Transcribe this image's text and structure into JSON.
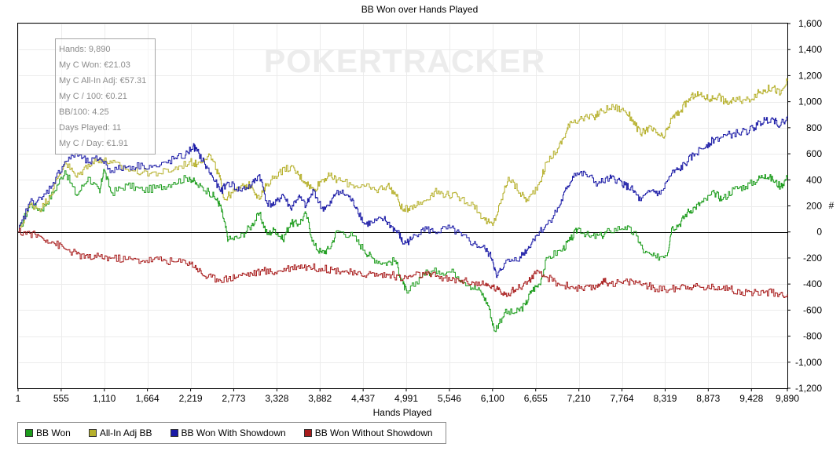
{
  "chart_data": {
    "type": "line",
    "title": "BB Won over Hands Played",
    "xlabel": "Hands Played",
    "ylabel": "#",
    "watermark": "POKERTRACKER",
    "xlim": [
      1,
      9890
    ],
    "ylim": [
      -1200,
      1600
    ],
    "x_ticks": [
      "1",
      "555",
      "1,110",
      "1,664",
      "2,219",
      "2,773",
      "3,328",
      "3,882",
      "4,437",
      "4,991",
      "5,546",
      "6,100",
      "6,655",
      "7,210",
      "7,764",
      "8,319",
      "8,873",
      "9,428",
      "9,890"
    ],
    "y_ticks": [
      "1,600",
      "1,400",
      "1,200",
      "1,000",
      "800",
      "600",
      "400",
      "200",
      "0",
      "-200",
      "-400",
      "-600",
      "-800",
      "-1,000",
      "-1,200"
    ],
    "grid": true,
    "legend_position": "bottom-left",
    "series": [
      {
        "name": "BB Won",
        "color": "#1c9c1c",
        "points": [
          [
            1,
            0
          ],
          [
            150,
            210
          ],
          [
            300,
            170
          ],
          [
            450,
            300
          ],
          [
            600,
            470
          ],
          [
            750,
            280
          ],
          [
            900,
            420
          ],
          [
            1050,
            300
          ],
          [
            1100,
            480
          ],
          [
            1200,
            300
          ],
          [
            1400,
            360
          ],
          [
            1600,
            320
          ],
          [
            1800,
            340
          ],
          [
            2000,
            380
          ],
          [
            2200,
            420
          ],
          [
            2300,
            360
          ],
          [
            2450,
            310
          ],
          [
            2550,
            250
          ],
          [
            2600,
            200
          ],
          [
            2650,
            80
          ],
          [
            2700,
            -60
          ],
          [
            2850,
            -40
          ],
          [
            3000,
            50
          ],
          [
            3100,
            140
          ],
          [
            3200,
            -20
          ],
          [
            3300,
            20
          ],
          [
            3400,
            -60
          ],
          [
            3500,
            70
          ],
          [
            3600,
            60
          ],
          [
            3700,
            140
          ],
          [
            3800,
            -100
          ],
          [
            3900,
            -160
          ],
          [
            4000,
            -130
          ],
          [
            4100,
            10
          ],
          [
            4300,
            -30
          ],
          [
            4450,
            -140
          ],
          [
            4550,
            -200
          ],
          [
            4700,
            -240
          ],
          [
            4850,
            -220
          ],
          [
            4950,
            -400
          ],
          [
            5000,
            -470
          ],
          [
            5200,
            -320
          ],
          [
            5400,
            -300
          ],
          [
            5600,
            -310
          ],
          [
            5800,
            -410
          ],
          [
            5950,
            -460
          ],
          [
            6050,
            -570
          ],
          [
            6120,
            -760
          ],
          [
            6250,
            -620
          ],
          [
            6400,
            -620
          ],
          [
            6520,
            -560
          ],
          [
            6600,
            -450
          ],
          [
            6700,
            -400
          ],
          [
            6800,
            -200
          ],
          [
            7000,
            -130
          ],
          [
            7100,
            -60
          ],
          [
            7200,
            30
          ],
          [
            7350,
            -40
          ],
          [
            7500,
            -30
          ],
          [
            7600,
            10
          ],
          [
            7800,
            40
          ],
          [
            7950,
            -30
          ],
          [
            8050,
            -160
          ],
          [
            8200,
            -200
          ],
          [
            8350,
            -160
          ],
          [
            8400,
            30
          ],
          [
            8500,
            60
          ],
          [
            8600,
            150
          ],
          [
            8700,
            190
          ],
          [
            8800,
            230
          ],
          [
            8950,
            300
          ],
          [
            9050,
            250
          ],
          [
            9200,
            330
          ],
          [
            9350,
            350
          ],
          [
            9500,
            400
          ],
          [
            9600,
            440
          ],
          [
            9700,
            400
          ],
          [
            9800,
            350
          ],
          [
            9890,
            420
          ]
        ]
      },
      {
        "name": "All-In Adj BB",
        "color": "#b6b02c",
        "points": [
          [
            1,
            0
          ],
          [
            150,
            210
          ],
          [
            300,
            180
          ],
          [
            450,
            330
          ],
          [
            600,
            540
          ],
          [
            750,
            420
          ],
          [
            900,
            520
          ],
          [
            1050,
            560
          ],
          [
            1200,
            530
          ],
          [
            1400,
            480
          ],
          [
            1600,
            460
          ],
          [
            1800,
            450
          ],
          [
            2000,
            480
          ],
          [
            2200,
            540
          ],
          [
            2300,
            520
          ],
          [
            2450,
            600
          ],
          [
            2550,
            480
          ],
          [
            2600,
            400
          ],
          [
            2650,
            250
          ],
          [
            2750,
            300
          ],
          [
            2900,
            350
          ],
          [
            3000,
            360
          ],
          [
            3100,
            250
          ],
          [
            3200,
            370
          ],
          [
            3350,
            460
          ],
          [
            3500,
            500
          ],
          [
            3600,
            440
          ],
          [
            3700,
            380
          ],
          [
            3800,
            320
          ],
          [
            3900,
            400
          ],
          [
            4000,
            430
          ],
          [
            4100,
            400
          ],
          [
            4300,
            360
          ],
          [
            4450,
            350
          ],
          [
            4600,
            320
          ],
          [
            4750,
            360
          ],
          [
            4850,
            290
          ],
          [
            4950,
            160
          ],
          [
            5050,
            200
          ],
          [
            5200,
            230
          ],
          [
            5350,
            310
          ],
          [
            5500,
            290
          ],
          [
            5650,
            270
          ],
          [
            5850,
            210
          ],
          [
            6000,
            90
          ],
          [
            6100,
            50
          ],
          [
            6200,
            220
          ],
          [
            6300,
            420
          ],
          [
            6450,
            300
          ],
          [
            6550,
            240
          ],
          [
            6700,
            380
          ],
          [
            6800,
            540
          ],
          [
            6950,
            650
          ],
          [
            7050,
            770
          ],
          [
            7100,
            850
          ],
          [
            7250,
            870
          ],
          [
            7400,
            880
          ],
          [
            7500,
            930
          ],
          [
            7650,
            960
          ],
          [
            7800,
            930
          ],
          [
            7900,
            860
          ],
          [
            8000,
            750
          ],
          [
            8100,
            800
          ],
          [
            8200,
            760
          ],
          [
            8300,
            720
          ],
          [
            8400,
            870
          ],
          [
            8500,
            920
          ],
          [
            8600,
            1000
          ],
          [
            8700,
            1060
          ],
          [
            8800,
            1040
          ],
          [
            8900,
            1020
          ],
          [
            9000,
            1050
          ],
          [
            9100,
            990
          ],
          [
            9200,
            1010
          ],
          [
            9350,
            1010
          ],
          [
            9500,
            1060
          ],
          [
            9600,
            1090
          ],
          [
            9700,
            1110
          ],
          [
            9800,
            1060
          ],
          [
            9890,
            1160
          ]
        ]
      },
      {
        "name": "BB Won With Showdown",
        "color": "#1a1aa6",
        "points": [
          [
            1,
            0
          ],
          [
            150,
            230
          ],
          [
            300,
            250
          ],
          [
            450,
            380
          ],
          [
            600,
            540
          ],
          [
            750,
            600
          ],
          [
            900,
            530
          ],
          [
            1050,
            570
          ],
          [
            1200,
            470
          ],
          [
            1400,
            500
          ],
          [
            1600,
            510
          ],
          [
            1800,
            500
          ],
          [
            2000,
            560
          ],
          [
            2150,
            590
          ],
          [
            2250,
            660
          ],
          [
            2300,
            620
          ],
          [
            2400,
            520
          ],
          [
            2500,
            420
          ],
          [
            2600,
            310
          ],
          [
            2700,
            380
          ],
          [
            2850,
            320
          ],
          [
            3000,
            360
          ],
          [
            3100,
            440
          ],
          [
            3200,
            220
          ],
          [
            3300,
            210
          ],
          [
            3400,
            290
          ],
          [
            3500,
            180
          ],
          [
            3600,
            270
          ],
          [
            3700,
            200
          ],
          [
            3800,
            320
          ],
          [
            3900,
            180
          ],
          [
            4000,
            200
          ],
          [
            4100,
            320
          ],
          [
            4250,
            270
          ],
          [
            4350,
            190
          ],
          [
            4450,
            60
          ],
          [
            4550,
            70
          ],
          [
            4700,
            100
          ],
          [
            4800,
            40
          ],
          [
            4900,
            -20
          ],
          [
            4950,
            -90
          ],
          [
            5050,
            -60
          ],
          [
            5200,
            30
          ],
          [
            5350,
            0
          ],
          [
            5550,
            30
          ],
          [
            5700,
            -30
          ],
          [
            5850,
            -90
          ],
          [
            6000,
            -130
          ],
          [
            6100,
            -210
          ],
          [
            6150,
            -350
          ],
          [
            6250,
            -240
          ],
          [
            6450,
            -190
          ],
          [
            6550,
            -130
          ],
          [
            6650,
            -30
          ],
          [
            6800,
            60
          ],
          [
            6950,
            190
          ],
          [
            7050,
            330
          ],
          [
            7150,
            450
          ],
          [
            7300,
            440
          ],
          [
            7450,
            370
          ],
          [
            7600,
            410
          ],
          [
            7700,
            400
          ],
          [
            7800,
            360
          ],
          [
            7900,
            320
          ],
          [
            8000,
            240
          ],
          [
            8150,
            320
          ],
          [
            8250,
            290
          ],
          [
            8400,
            450
          ],
          [
            8500,
            480
          ],
          [
            8600,
            540
          ],
          [
            8700,
            600
          ],
          [
            8850,
            670
          ],
          [
            8950,
            710
          ],
          [
            9100,
            740
          ],
          [
            9250,
            760
          ],
          [
            9400,
            780
          ],
          [
            9500,
            820
          ],
          [
            9600,
            860
          ],
          [
            9700,
            870
          ],
          [
            9800,
            820
          ],
          [
            9890,
            890
          ]
        ]
      },
      {
        "name": "BB Won Without Showdown",
        "color": "#a81c1c",
        "points": [
          [
            1,
            0
          ],
          [
            150,
            -10
          ],
          [
            300,
            -40
          ],
          [
            450,
            -80
          ],
          [
            600,
            -130
          ],
          [
            750,
            -170
          ],
          [
            900,
            -200
          ],
          [
            1050,
            -190
          ],
          [
            1200,
            -200
          ],
          [
            1400,
            -210
          ],
          [
            1600,
            -220
          ],
          [
            1800,
            -210
          ],
          [
            2000,
            -230
          ],
          [
            2200,
            -230
          ],
          [
            2300,
            -280
          ],
          [
            2400,
            -340
          ],
          [
            2550,
            -360
          ],
          [
            2700,
            -360
          ],
          [
            2850,
            -330
          ],
          [
            3000,
            -320
          ],
          [
            3150,
            -300
          ],
          [
            3300,
            -310
          ],
          [
            3450,
            -280
          ],
          [
            3600,
            -260
          ],
          [
            3750,
            -270
          ],
          [
            3900,
            -280
          ],
          [
            4050,
            -290
          ],
          [
            4200,
            -300
          ],
          [
            4350,
            -330
          ],
          [
            4500,
            -320
          ],
          [
            4650,
            -330
          ],
          [
            4800,
            -330
          ],
          [
            4950,
            -360
          ],
          [
            5100,
            -330
          ],
          [
            5250,
            -330
          ],
          [
            5400,
            -340
          ],
          [
            5550,
            -370
          ],
          [
            5700,
            -370
          ],
          [
            5850,
            -390
          ],
          [
            6000,
            -410
          ],
          [
            6100,
            -420
          ],
          [
            6200,
            -460
          ],
          [
            6300,
            -470
          ],
          [
            6400,
            -440
          ],
          [
            6550,
            -380
          ],
          [
            6650,
            -320
          ],
          [
            6800,
            -350
          ],
          [
            6950,
            -400
          ],
          [
            7100,
            -420
          ],
          [
            7250,
            -440
          ],
          [
            7400,
            -430
          ],
          [
            7500,
            -380
          ],
          [
            7600,
            -390
          ],
          [
            7750,
            -390
          ],
          [
            7900,
            -380
          ],
          [
            8050,
            -400
          ],
          [
            8200,
            -440
          ],
          [
            8400,
            -440
          ],
          [
            8550,
            -410
          ],
          [
            8700,
            -420
          ],
          [
            8850,
            -430
          ],
          [
            9000,
            -420
          ],
          [
            9150,
            -440
          ],
          [
            9300,
            -460
          ],
          [
            9450,
            -470
          ],
          [
            9600,
            -460
          ],
          [
            9750,
            -470
          ],
          [
            9890,
            -480
          ]
        ]
      }
    ]
  },
  "info_box": {
    "lines": [
      "Hands: 9,890",
      "My C Won: €21.03",
      "My C All-In Adj: €57.31",
      "My C / 100: €0.21",
      "BB/100: 4.25",
      "Days Played: 11",
      "My C / Day: €1.91"
    ]
  },
  "legend": {
    "items": [
      "BB Won",
      "All-In Adj BB",
      "BB Won With Showdown",
      "BB Won Without Showdown"
    ]
  }
}
